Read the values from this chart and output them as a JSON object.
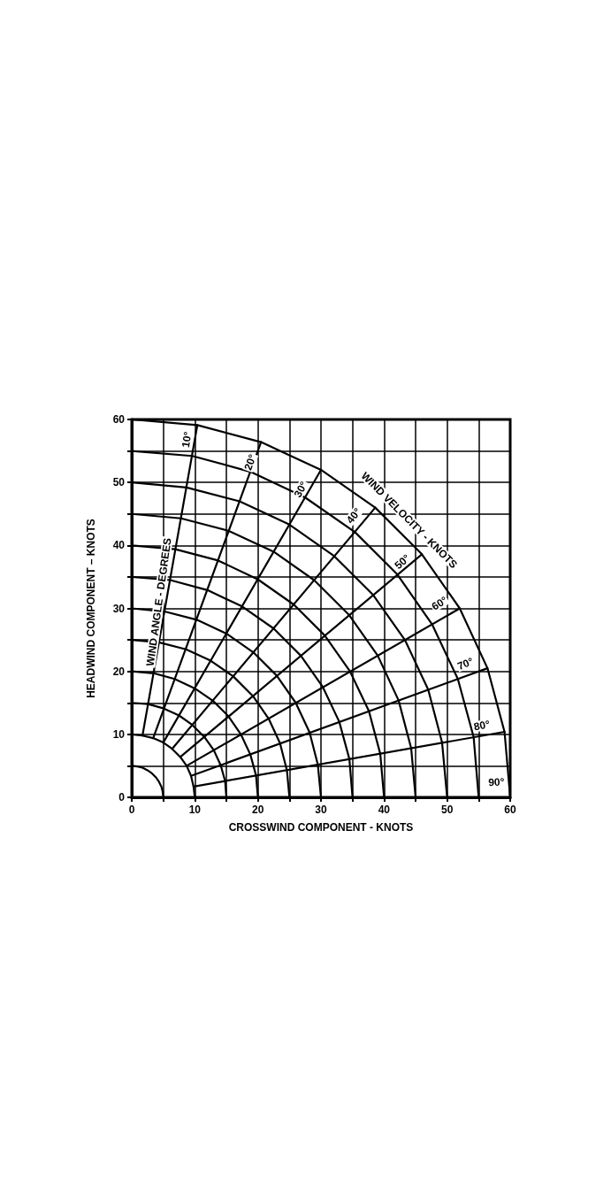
{
  "chart_data": {
    "type": "line",
    "xlabel": "CROSSWIND COMPONENT - KNOTS",
    "ylabel": "HEADWIND COMPONENT – KNOTS",
    "xlim": [
      0,
      60
    ],
    "ylim": [
      0,
      60
    ],
    "xticks": [
      0,
      {
        "value": 5,
        "label": null
      },
      10,
      {
        "value": 15,
        "label": null
      },
      20,
      {
        "value": 25,
        "label": null
      },
      30,
      {
        "value": 35,
        "label": null
      },
      40,
      {
        "value": 45,
        "label": null
      },
      50,
      {
        "value": 55,
        "label": null
      },
      60
    ],
    "yticks": [
      0,
      {
        "value": 5,
        "label": null
      },
      10,
      {
        "value": 15,
        "label": null
      },
      20,
      {
        "value": 25,
        "label": null
      },
      30,
      {
        "value": 35,
        "label": null
      },
      40,
      {
        "value": 45,
        "label": null
      },
      50,
      {
        "value": 55,
        "label": null
      },
      60
    ],
    "grid": true,
    "marker": "none",
    "line_style": "solid",
    "series": [
      {
        "color": "#000000",
        "x": [
          0,
          0.9,
          1.7,
          2.5,
          3.2,
          3.8,
          4.3,
          4.7,
          4.9,
          5
        ],
        "values": [
          5,
          4.9,
          4.7,
          4.3,
          3.8,
          3.2,
          2.5,
          1.7,
          0.9,
          0
        ]
      },
      {
        "color": "#000000",
        "x": [
          0,
          1.7,
          3.4,
          5,
          6.4,
          7.7,
          8.7,
          9.4,
          9.8,
          10
        ],
        "values": [
          10,
          9.8,
          9.4,
          8.7,
          7.7,
          6.4,
          5,
          3.4,
          1.7,
          0
        ]
      },
      {
        "color": "#000000",
        "x": [
          0,
          2.6,
          5.1,
          7.5,
          9.6,
          11.5,
          13,
          14.1,
          14.8,
          15
        ],
        "values": [
          15,
          14.8,
          14.1,
          13,
          11.5,
          9.6,
          7.5,
          5.1,
          2.6,
          0
        ]
      },
      {
        "color": "#000000",
        "x": [
          0,
          3.5,
          6.8,
          10,
          12.9,
          15.3,
          17.3,
          18.8,
          19.7,
          20
        ],
        "values": [
          20,
          19.7,
          18.8,
          17.3,
          15.3,
          12.9,
          10,
          6.8,
          3.5,
          0
        ]
      },
      {
        "color": "#000000",
        "x": [
          0,
          4.3,
          8.6,
          12.5,
          16.1,
          19.2,
          21.7,
          23.5,
          24.6,
          25
        ],
        "values": [
          25,
          24.6,
          23.5,
          21.7,
          19.2,
          16.1,
          12.5,
          8.6,
          4.3,
          0
        ]
      },
      {
        "color": "#000000",
        "x": [
          0,
          5.2,
          10.3,
          15,
          19.3,
          23,
          26,
          28.2,
          29.5,
          30
        ],
        "values": [
          30,
          29.5,
          28.2,
          26,
          23,
          19.3,
          15,
          10.3,
          5.2,
          0
        ]
      },
      {
        "color": "#000000",
        "x": [
          0,
          6.1,
          12,
          17.5,
          22.5,
          26.8,
          30.3,
          32.9,
          34.5,
          35
        ],
        "values": [
          35,
          34.5,
          32.9,
          30.3,
          26.8,
          22.5,
          17.5,
          12,
          6.1,
          0
        ]
      },
      {
        "color": "#000000",
        "x": [
          0,
          6.9,
          13.7,
          20,
          25.7,
          30.6,
          34.6,
          37.6,
          39.4,
          40
        ],
        "values": [
          40,
          39.4,
          37.6,
          34.6,
          30.6,
          25.7,
          20,
          13.7,
          6.9,
          0
        ]
      },
      {
        "color": "#000000",
        "x": [
          0,
          7.8,
          15.4,
          22.5,
          28.9,
          34.5,
          39,
          42.3,
          44.3,
          45
        ],
        "values": [
          45,
          44.3,
          42.3,
          39,
          34.5,
          28.9,
          22.5,
          15.4,
          7.8,
          0
        ]
      },
      {
        "color": "#000000",
        "x": [
          0,
          8.7,
          17.1,
          25,
          32.1,
          38.3,
          43.3,
          47,
          49.2,
          50
        ],
        "values": [
          50,
          49.2,
          47,
          43.3,
          38.3,
          32.1,
          25,
          17.1,
          8.7,
          0
        ]
      },
      {
        "color": "#000000",
        "x": [
          0,
          9.6,
          18.8,
          27.5,
          35.4,
          42.1,
          47.6,
          51.7,
          54.2,
          55
        ],
        "values": [
          55,
          54.2,
          51.7,
          47.6,
          42.1,
          35.4,
          27.5,
          18.8,
          9.6,
          0
        ]
      },
      {
        "color": "#000000",
        "x": [
          0,
          10.4,
          20.5,
          30,
          38.6,
          46,
          52,
          56.4,
          59.1,
          60
        ],
        "values": [
          60,
          59.1,
          56.4,
          52,
          46,
          38.6,
          30,
          20.5,
          10.4,
          0
        ]
      },
      {
        "color": "#000000",
        "x": [
          1.7,
          10.4
        ],
        "values": [
          9.8,
          59.1
        ]
      },
      {
        "color": "#000000",
        "x": [
          3.4,
          20.5
        ],
        "values": [
          9.4,
          56.4
        ]
      },
      {
        "color": "#000000",
        "x": [
          5,
          30
        ],
        "values": [
          8.7,
          52
        ]
      },
      {
        "color": "#000000",
        "x": [
          6.4,
          38.6
        ],
        "values": [
          7.7,
          46
        ]
      },
      {
        "color": "#000000",
        "x": [
          7.7,
          46
        ],
        "values": [
          6.4,
          38.6
        ]
      },
      {
        "color": "#000000",
        "x": [
          8.7,
          52
        ],
        "values": [
          5,
          30
        ]
      },
      {
        "color": "#000000",
        "x": [
          9.4,
          56.4
        ],
        "values": [
          3.4,
          20.5
        ]
      },
      {
        "color": "#000000",
        "x": [
          9.8,
          59.1
        ],
        "values": [
          1.7,
          10.4
        ]
      }
    ],
    "annotations": [
      {
        "text": "10°",
        "x": 8.7,
        "y": 56.8
      },
      {
        "text": "20°",
        "x": 18.8,
        "y": 53.2
      },
      {
        "text": "30°",
        "x": 26.8,
        "y": 48.9
      },
      {
        "text": "40°",
        "x": 35.2,
        "y": 44.7
      },
      {
        "text": "50°",
        "x": 42.9,
        "y": 37.4
      },
      {
        "text": "60°",
        "x": 48.8,
        "y": 30.8
      },
      {
        "text": "70°",
        "x": 52.9,
        "y": 21.2
      },
      {
        "text": "80°",
        "x": 55.5,
        "y": 11.4
      },
      {
        "text": "90°",
        "x": 57.8,
        "y": 2.4
      },
      "WIND ANGLE - DEGREES",
      "WIND VELOCITY - KNOTS"
    ]
  }
}
